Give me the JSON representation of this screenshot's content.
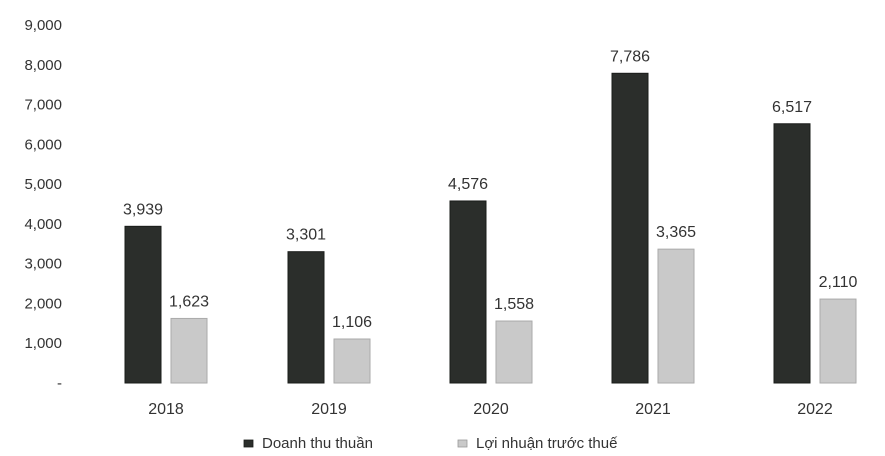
{
  "chart_data": {
    "type": "bar",
    "categories": [
      "2018",
      "2019",
      "2020",
      "2021",
      "2022"
    ],
    "series": [
      {
        "name": "Doanh thu thuần",
        "values": [
          3939,
          3301,
          4576,
          7786,
          6517
        ],
        "labels": [
          "3,939",
          "3,301",
          "4,576",
          "7,786",
          "6,517"
        ],
        "color": "#2b2e2b"
      },
      {
        "name": "Lợi nhuận trước thuế",
        "values": [
          1623,
          1106,
          1558,
          3365,
          2110
        ],
        "labels": [
          "1,623",
          "1,106",
          "1,558",
          "3,365",
          "2,110"
        ],
        "color": "#c9c9c9"
      }
    ],
    "ylim": [
      0,
      9000
    ],
    "yticks": [
      "-",
      "1,000",
      "2,000",
      "3,000",
      "4,000",
      "5,000",
      "6,000",
      "7,000",
      "8,000",
      "9,000"
    ],
    "grid": false,
    "legend_position": "bottom-center"
  }
}
